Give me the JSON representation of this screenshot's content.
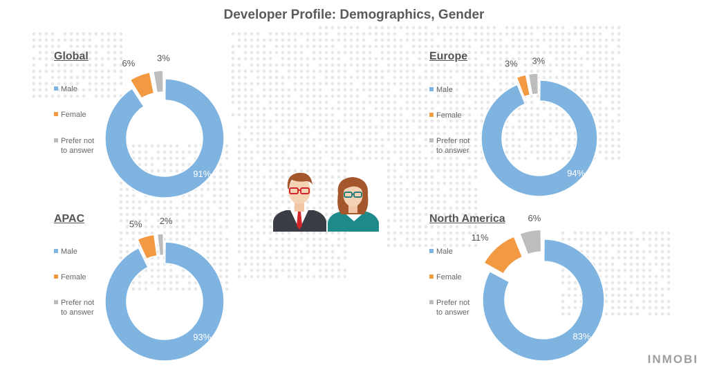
{
  "title": "Developer Profile: Demographics, Gender",
  "brand": "INMOBI",
  "legend": {
    "male": "Male",
    "female": "Female",
    "prefer_line1": "Prefer not",
    "prefer_line2": "to answer"
  },
  "colors": {
    "male": "#7fb4e0",
    "female": "#f29a42",
    "prefer_not": "#bdbdbd",
    "map_dots": "#e8e8e8"
  },
  "chart_data": [
    {
      "type": "pie",
      "title": "Global",
      "categories": [
        "Male",
        "Female",
        "Prefer not to answer"
      ],
      "values": [
        91,
        6,
        3
      ],
      "labels": [
        "91%",
        "6%",
        "3%"
      ]
    },
    {
      "type": "pie",
      "title": "Europe",
      "categories": [
        "Male",
        "Female",
        "Prefer not to answer"
      ],
      "values": [
        94,
        3,
        3
      ],
      "labels": [
        "94%",
        "3%",
        "3%"
      ]
    },
    {
      "type": "pie",
      "title": "APAC",
      "categories": [
        "Male",
        "Female",
        "Prefer not to answer"
      ],
      "values": [
        93,
        5,
        2
      ],
      "labels": [
        "93%",
        "5%",
        "2%"
      ]
    },
    {
      "type": "pie",
      "title": "North America",
      "categories": [
        "Male",
        "Female",
        "Prefer not to answer"
      ],
      "values": [
        83,
        11,
        6
      ],
      "labels": [
        "83%",
        "11%",
        "6%"
      ]
    }
  ]
}
